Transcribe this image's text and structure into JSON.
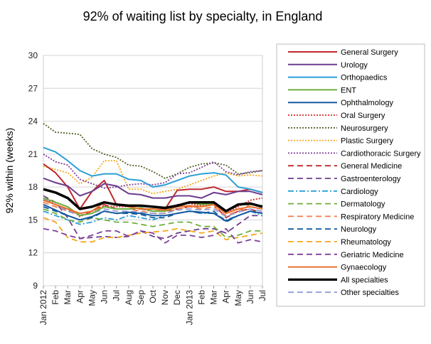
{
  "chart_data": {
    "type": "line",
    "title": "92% of waiting list by specialty, in England",
    "xlabel": "",
    "ylabel": "92% within (weeks)",
    "ylim": [
      9,
      30
    ],
    "yticks": [
      9,
      12,
      15,
      18,
      21,
      24,
      27,
      30
    ],
    "grid": true,
    "legend_position": "right",
    "x": [
      "Jan 2012",
      "Feb",
      "Mar",
      "Apr",
      "May",
      "Jun",
      "Jul",
      "Aug",
      "Sep",
      "Oct",
      "Nov",
      "Dec",
      "Jan 2013",
      "Feb",
      "Mar",
      "Apr",
      "May",
      "Jun",
      "Jul"
    ],
    "series": [
      {
        "name": "General Surgery",
        "color": "#c0282d",
        "dash": "",
        "width": 2,
        "values": [
          20.1,
          19.3,
          18.0,
          16.0,
          17.6,
          18.6,
          16.4,
          16.3,
          16.3,
          16.2,
          16.0,
          17.7,
          17.8,
          17.8,
          18.0,
          17.6,
          17.6,
          17.8,
          17.5
        ]
      },
      {
        "name": "Urology",
        "color": "#6c3d8e",
        "dash": "",
        "width": 2,
        "values": [
          18.8,
          18.4,
          18.1,
          17.2,
          17.6,
          18.3,
          18.1,
          17.4,
          17.3,
          17.0,
          17.0,
          17.2,
          17.2,
          17.0,
          17.5,
          17.3,
          17.6,
          17.6,
          17.3
        ]
      },
      {
        "name": "Orthopaedics",
        "color": "#2a9fd6",
        "dash": "",
        "width": 2,
        "values": [
          21.6,
          21.2,
          20.4,
          19.5,
          19.0,
          19.2,
          19.2,
          18.7,
          18.6,
          18.0,
          18.2,
          18.6,
          19.0,
          19.2,
          19.3,
          19.1,
          18.0,
          17.8,
          17.5
        ]
      },
      {
        "name": "ENT",
        "color": "#6fae3c",
        "dash": "",
        "width": 2,
        "values": [
          17.0,
          16.6,
          16.2,
          15.4,
          15.6,
          16.2,
          16.0,
          16.0,
          16.1,
          15.8,
          15.8,
          16.2,
          16.6,
          16.4,
          16.5,
          15.8,
          16.4,
          16.4,
          16.3
        ]
      },
      {
        "name": "Ophthalmology",
        "color": "#14599e",
        "dash": "",
        "width": 2,
        "values": [
          16.4,
          15.9,
          15.4,
          15.0,
          15.3,
          15.8,
          15.6,
          15.7,
          15.6,
          15.4,
          15.4,
          15.6,
          15.8,
          15.7,
          15.6,
          14.9,
          15.4,
          15.8,
          15.6
        ]
      },
      {
        "name": "Oral Surgery",
        "color": "#d62728",
        "dash": "2,2",
        "width": 1.8,
        "values": [
          16.8,
          16.6,
          16.2,
          15.3,
          15.8,
          16.3,
          16.2,
          16.2,
          16.0,
          15.8,
          15.9,
          16.4,
          16.5,
          16.3,
          16.4,
          15.6,
          16.2,
          16.8,
          17.0
        ]
      },
      {
        "name": "Neurosurgery",
        "color": "#4f6228",
        "dash": "2,2",
        "width": 1.8,
        "values": [
          23.8,
          23.0,
          22.9,
          22.8,
          21.5,
          21.0,
          20.7,
          20.0,
          19.9,
          19.4,
          18.8,
          19.2,
          19.8,
          20.1,
          20.2,
          20.0,
          19.2,
          19.3,
          19.5
        ]
      },
      {
        "name": "Plastic Surgery",
        "color": "#f5a71b",
        "dash": "2,2",
        "width": 1.8,
        "values": [
          19.9,
          19.6,
          19.3,
          18.3,
          18.9,
          20.4,
          20.4,
          17.8,
          17.8,
          17.4,
          17.6,
          17.8,
          18.2,
          18.6,
          19.0,
          19.3,
          19.0,
          19.1,
          19.0
        ]
      },
      {
        "name": "Cardiothoracic Surgery",
        "color": "#7f3f98",
        "dash": "2,2",
        "width": 1.8,
        "values": [
          21.0,
          20.3,
          20.0,
          18.7,
          18.3,
          17.9,
          18.0,
          18.2,
          18.3,
          18.2,
          18.4,
          19.2,
          19.3,
          19.8,
          20.3,
          19.4,
          19.1,
          19.4,
          19.5
        ]
      },
      {
        "name": "General Medicine",
        "color": "#c0282d",
        "dash": "8,5",
        "width": 1.8,
        "values": [
          16.8,
          16.4,
          15.9,
          15.4,
          15.8,
          16.4,
          16.0,
          16.0,
          16.0,
          15.8,
          15.8,
          16.0,
          16.2,
          16.2,
          16.4,
          15.2,
          15.8,
          16.0,
          15.6
        ]
      },
      {
        "name": "Gastroenterology",
        "color": "#6c3d8e",
        "dash": "8,5",
        "width": 1.8,
        "values": [
          17.2,
          16.6,
          15.2,
          13.3,
          13.4,
          13.5,
          13.4,
          13.5,
          14.0,
          13.5,
          13.3,
          13.8,
          14.0,
          14.2,
          14.2,
          13.8,
          14.6,
          15.4,
          15.4
        ]
      },
      {
        "name": "Cardiology",
        "color": "#2a9fd6",
        "dash": "8,3,2,3",
        "width": 1.8,
        "values": [
          15.8,
          15.4,
          15.0,
          14.6,
          14.8,
          15.2,
          15.0,
          15.4,
          15.2,
          15.0,
          15.4,
          15.6,
          15.8,
          15.6,
          15.6,
          15.0,
          15.4,
          15.8,
          15.4
        ]
      },
      {
        "name": "Dermatology",
        "color": "#6fae3c",
        "dash": "8,5",
        "width": 1.8,
        "values": [
          16.0,
          15.6,
          15.0,
          14.8,
          15.2,
          15.0,
          14.8,
          14.8,
          14.6,
          14.4,
          14.6,
          14.8,
          14.8,
          14.4,
          14.4,
          13.4,
          13.6,
          14.0,
          14.0
        ]
      },
      {
        "name": "Respiratory Medicine",
        "color": "#f07c4a",
        "dash": "8,5",
        "width": 1.8,
        "values": [
          16.6,
          16.2,
          15.8,
          15.6,
          15.8,
          16.2,
          16.0,
          16.0,
          15.8,
          15.6,
          15.6,
          16.0,
          16.2,
          16.0,
          16.2,
          15.4,
          15.8,
          16.4,
          16.2
        ]
      },
      {
        "name": "Neurology",
        "color": "#14599e",
        "dash": "8,5",
        "width": 1.8,
        "values": [
          16.2,
          15.8,
          15.4,
          15.0,
          15.2,
          15.8,
          15.6,
          15.6,
          15.5,
          15.2,
          15.2,
          15.6,
          15.8,
          15.6,
          15.8,
          14.8,
          15.4,
          15.8,
          15.6
        ]
      },
      {
        "name": "Rheumatology",
        "color": "#f5a71b",
        "dash": "8,5",
        "width": 1.8,
        "values": [
          15.2,
          14.8,
          13.4,
          13.0,
          13.0,
          13.4,
          13.4,
          13.6,
          13.8,
          13.9,
          14.0,
          14.2,
          14.0,
          13.8,
          14.0,
          13.2,
          13.4,
          13.6,
          13.8
        ]
      },
      {
        "name": "Geriatric Medicine",
        "color": "#7f3f98",
        "dash": "8,5",
        "width": 1.8,
        "values": [
          14.2,
          14.0,
          13.6,
          13.3,
          13.6,
          14.0,
          14.0,
          13.5,
          14.0,
          13.8,
          12.9,
          13.6,
          13.6,
          13.4,
          13.6,
          14.2,
          12.9,
          13.2,
          13.0
        ]
      },
      {
        "name": "Gynaecology",
        "color": "#e8702a",
        "dash": "",
        "width": 2,
        "values": [
          16.8,
          16.4,
          16.0,
          15.6,
          15.8,
          16.6,
          16.4,
          16.2,
          16.0,
          16.0,
          15.9,
          16.2,
          16.3,
          16.2,
          16.4,
          15.6,
          16.0,
          16.2,
          16.0
        ]
      },
      {
        "name": "All specialties",
        "color": "#000000",
        "dash": "",
        "width": 3.5,
        "values": [
          17.8,
          17.5,
          17.0,
          16.0,
          16.2,
          16.6,
          16.4,
          16.3,
          16.3,
          16.2,
          16.1,
          16.3,
          16.6,
          16.6,
          16.6,
          15.8,
          16.4,
          16.5,
          16.2
        ]
      },
      {
        "name": "Other specialties",
        "color": "#8e9ed6",
        "dash": "8,5",
        "width": 1.8,
        "values": [
          16.9,
          16.4,
          15.8,
          15.4,
          15.6,
          16.0,
          15.8,
          15.8,
          15.7,
          15.6,
          15.6,
          15.9,
          16.0,
          15.9,
          16.0,
          15.3,
          15.7,
          16.0,
          15.8
        ]
      }
    ]
  }
}
